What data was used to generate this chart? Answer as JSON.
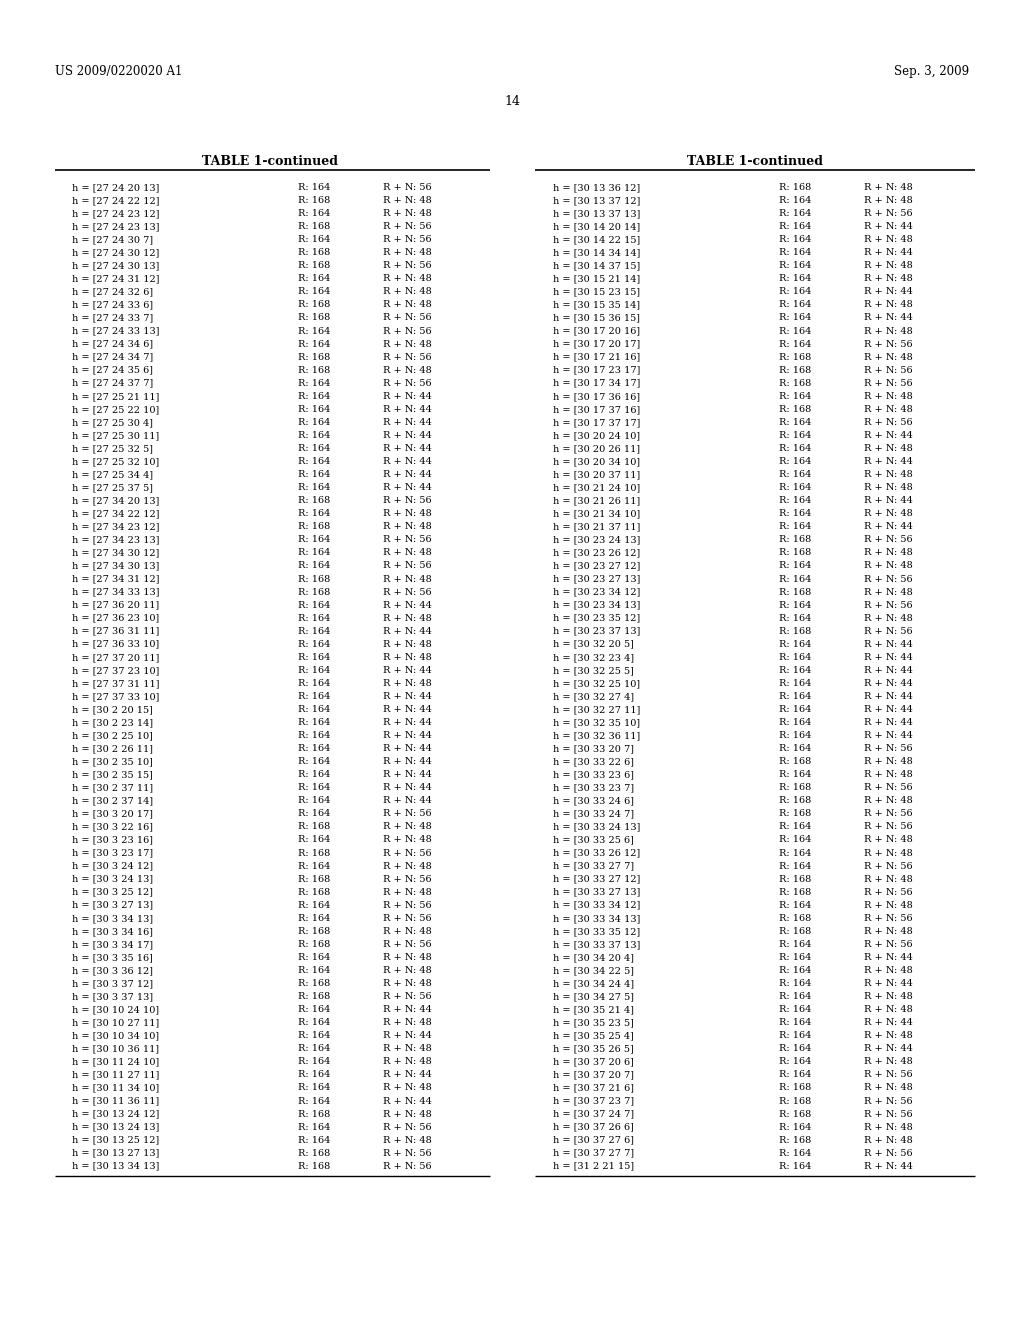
{
  "header_left": "US 2009/0220020 A1",
  "header_right": "Sep. 3, 2009",
  "page_number": "14",
  "table_title": "TABLE 1-continued",
  "background_color": "#ffffff",
  "text_color": "#000000",
  "left_col_data": [
    [
      "h = [27 24 20 13]",
      "R: 164",
      "R + N: 56"
    ],
    [
      "h = [27 24 22 12]",
      "R: 168",
      "R + N: 48"
    ],
    [
      "h = [27 24 23 12]",
      "R: 164",
      "R + N: 48"
    ],
    [
      "h = [27 24 23 13]",
      "R: 168",
      "R + N: 56"
    ],
    [
      "h = [27 24 30 7]",
      "R: 164",
      "R + N: 56"
    ],
    [
      "h = [27 24 30 12]",
      "R: 168",
      "R + N: 48"
    ],
    [
      "h = [27 24 30 13]",
      "R: 168",
      "R + N: 56"
    ],
    [
      "h = [27 24 31 12]",
      "R: 164",
      "R + N: 48"
    ],
    [
      "h = [27 24 32 6]",
      "R: 164",
      "R + N: 48"
    ],
    [
      "h = [27 24 33 6]",
      "R: 168",
      "R + N: 48"
    ],
    [
      "h = [27 24 33 7]",
      "R: 168",
      "R + N: 56"
    ],
    [
      "h = [27 24 33 13]",
      "R: 164",
      "R + N: 56"
    ],
    [
      "h = [27 24 34 6]",
      "R: 164",
      "R + N: 48"
    ],
    [
      "h = [27 24 34 7]",
      "R: 168",
      "R + N: 56"
    ],
    [
      "h = [27 24 35 6]",
      "R: 168",
      "R + N: 48"
    ],
    [
      "h = [27 24 37 7]",
      "R: 164",
      "R + N: 56"
    ],
    [
      "h = [27 25 21 11]",
      "R: 164",
      "R + N: 44"
    ],
    [
      "h = [27 25 22 10]",
      "R: 164",
      "R + N: 44"
    ],
    [
      "h = [27 25 30 4]",
      "R: 164",
      "R + N: 44"
    ],
    [
      "h = [27 25 30 11]",
      "R: 164",
      "R + N: 44"
    ],
    [
      "h = [27 25 32 5]",
      "R: 164",
      "R + N: 44"
    ],
    [
      "h = [27 25 32 10]",
      "R: 164",
      "R + N: 44"
    ],
    [
      "h = [27 25 34 4]",
      "R: 164",
      "R + N: 44"
    ],
    [
      "h = [27 25 37 5]",
      "R: 164",
      "R + N: 44"
    ],
    [
      "h = [27 34 20 13]",
      "R: 168",
      "R + N: 56"
    ],
    [
      "h = [27 34 22 12]",
      "R: 164",
      "R + N: 48"
    ],
    [
      "h = [27 34 23 12]",
      "R: 168",
      "R + N: 48"
    ],
    [
      "h = [27 34 23 13]",
      "R: 164",
      "R + N: 56"
    ],
    [
      "h = [27 34 30 12]",
      "R: 164",
      "R + N: 48"
    ],
    [
      "h = [27 34 30 13]",
      "R: 164",
      "R + N: 56"
    ],
    [
      "h = [27 34 31 12]",
      "R: 168",
      "R + N: 48"
    ],
    [
      "h = [27 34 33 13]",
      "R: 168",
      "R + N: 56"
    ],
    [
      "h = [27 36 20 11]",
      "R: 164",
      "R + N: 44"
    ],
    [
      "h = [27 36 23 10]",
      "R: 164",
      "R + N: 48"
    ],
    [
      "h = [27 36 31 11]",
      "R: 164",
      "R + N: 44"
    ],
    [
      "h = [27 36 33 10]",
      "R: 164",
      "R + N: 48"
    ],
    [
      "h = [27 37 20 11]",
      "R: 164",
      "R + N: 48"
    ],
    [
      "h = [27 37 23 10]",
      "R: 164",
      "R + N: 44"
    ],
    [
      "h = [27 37 31 11]",
      "R: 164",
      "R + N: 48"
    ],
    [
      "h = [27 37 33 10]",
      "R: 164",
      "R + N: 44"
    ],
    [
      "h = [30 2 20 15]",
      "R: 164",
      "R + N: 44"
    ],
    [
      "h = [30 2 23 14]",
      "R: 164",
      "R + N: 44"
    ],
    [
      "h = [30 2 25 10]",
      "R: 164",
      "R + N: 44"
    ],
    [
      "h = [30 2 26 11]",
      "R: 164",
      "R + N: 44"
    ],
    [
      "h = [30 2 35 10]",
      "R: 164",
      "R + N: 44"
    ],
    [
      "h = [30 2 35 15]",
      "R: 164",
      "R + N: 44"
    ],
    [
      "h = [30 2 37 11]",
      "R: 164",
      "R + N: 44"
    ],
    [
      "h = [30 2 37 14]",
      "R: 164",
      "R + N: 44"
    ],
    [
      "h = [30 3 20 17]",
      "R: 164",
      "R + N: 56"
    ],
    [
      "h = [30 3 22 16]",
      "R: 168",
      "R + N: 48"
    ],
    [
      "h = [30 3 23 16]",
      "R: 164",
      "R + N: 48"
    ],
    [
      "h = [30 3 23 17]",
      "R: 168",
      "R + N: 56"
    ],
    [
      "h = [30 3 24 12]",
      "R: 164",
      "R + N: 48"
    ],
    [
      "h = [30 3 24 13]",
      "R: 168",
      "R + N: 56"
    ],
    [
      "h = [30 3 25 12]",
      "R: 168",
      "R + N: 48"
    ],
    [
      "h = [30 3 27 13]",
      "R: 164",
      "R + N: 56"
    ],
    [
      "h = [30 3 34 13]",
      "R: 164",
      "R + N: 56"
    ],
    [
      "h = [30 3 34 16]",
      "R: 168",
      "R + N: 48"
    ],
    [
      "h = [30 3 34 17]",
      "R: 168",
      "R + N: 56"
    ],
    [
      "h = [30 3 35 16]",
      "R: 164",
      "R + N: 48"
    ],
    [
      "h = [30 3 36 12]",
      "R: 164",
      "R + N: 48"
    ],
    [
      "h = [30 3 37 12]",
      "R: 168",
      "R + N: 48"
    ],
    [
      "h = [30 3 37 13]",
      "R: 168",
      "R + N: 56"
    ],
    [
      "h = [30 10 24 10]",
      "R: 164",
      "R + N: 44"
    ],
    [
      "h = [30 10 27 11]",
      "R: 164",
      "R + N: 48"
    ],
    [
      "h = [30 10 34 10]",
      "R: 164",
      "R + N: 44"
    ],
    [
      "h = [30 10 36 11]",
      "R: 164",
      "R + N: 48"
    ],
    [
      "h = [30 11 24 10]",
      "R: 164",
      "R + N: 48"
    ],
    [
      "h = [30 11 27 11]",
      "R: 164",
      "R + N: 44"
    ],
    [
      "h = [30 11 34 10]",
      "R: 164",
      "R + N: 48"
    ],
    [
      "h = [30 11 36 11]",
      "R: 164",
      "R + N: 44"
    ],
    [
      "h = [30 13 24 12]",
      "R: 168",
      "R + N: 48"
    ],
    [
      "h = [30 13 24 13]",
      "R: 164",
      "R + N: 56"
    ],
    [
      "h = [30 13 25 12]",
      "R: 164",
      "R + N: 48"
    ],
    [
      "h = [30 13 27 13]",
      "R: 168",
      "R + N: 56"
    ],
    [
      "h = [30 13 34 13]",
      "R: 168",
      "R + N: 56"
    ]
  ],
  "right_col_data": [
    [
      "h = [30 13 36 12]",
      "R: 168",
      "R + N: 48"
    ],
    [
      "h = [30 13 37 12]",
      "R: 164",
      "R + N: 48"
    ],
    [
      "h = [30 13 37 13]",
      "R: 164",
      "R + N: 56"
    ],
    [
      "h = [30 14 20 14]",
      "R: 164",
      "R + N: 44"
    ],
    [
      "h = [30 14 22 15]",
      "R: 164",
      "R + N: 48"
    ],
    [
      "h = [30 14 34 14]",
      "R: 164",
      "R + N: 44"
    ],
    [
      "h = [30 14 37 15]",
      "R: 164",
      "R + N: 48"
    ],
    [
      "h = [30 15 21 14]",
      "R: 164",
      "R + N: 48"
    ],
    [
      "h = [30 15 23 15]",
      "R: 164",
      "R + N: 44"
    ],
    [
      "h = [30 15 35 14]",
      "R: 164",
      "R + N: 48"
    ],
    [
      "h = [30 15 36 15]",
      "R: 164",
      "R + N: 44"
    ],
    [
      "h = [30 17 20 16]",
      "R: 164",
      "R + N: 48"
    ],
    [
      "h = [30 17 20 17]",
      "R: 164",
      "R + N: 56"
    ],
    [
      "h = [30 17 21 16]",
      "R: 168",
      "R + N: 48"
    ],
    [
      "h = [30 17 23 17]",
      "R: 168",
      "R + N: 56"
    ],
    [
      "h = [30 17 34 17]",
      "R: 168",
      "R + N: 56"
    ],
    [
      "h = [30 17 36 16]",
      "R: 164",
      "R + N: 48"
    ],
    [
      "h = [30 17 37 16]",
      "R: 168",
      "R + N: 48"
    ],
    [
      "h = [30 17 37 17]",
      "R: 164",
      "R + N: 56"
    ],
    [
      "h = [30 20 24 10]",
      "R: 164",
      "R + N: 44"
    ],
    [
      "h = [30 20 26 11]",
      "R: 164",
      "R + N: 48"
    ],
    [
      "h = [30 20 34 10]",
      "R: 164",
      "R + N: 44"
    ],
    [
      "h = [30 20 37 11]",
      "R: 164",
      "R + N: 48"
    ],
    [
      "h = [30 21 24 10]",
      "R: 164",
      "R + N: 48"
    ],
    [
      "h = [30 21 26 11]",
      "R: 164",
      "R + N: 44"
    ],
    [
      "h = [30 21 34 10]",
      "R: 164",
      "R + N: 48"
    ],
    [
      "h = [30 21 37 11]",
      "R: 164",
      "R + N: 44"
    ],
    [
      "h = [30 23 24 13]",
      "R: 168",
      "R + N: 56"
    ],
    [
      "h = [30 23 26 12]",
      "R: 168",
      "R + N: 48"
    ],
    [
      "h = [30 23 27 12]",
      "R: 164",
      "R + N: 48"
    ],
    [
      "h = [30 23 27 13]",
      "R: 164",
      "R + N: 56"
    ],
    [
      "h = [30 23 34 12]",
      "R: 168",
      "R + N: 48"
    ],
    [
      "h = [30 23 34 13]",
      "R: 164",
      "R + N: 56"
    ],
    [
      "h = [30 23 35 12]",
      "R: 164",
      "R + N: 48"
    ],
    [
      "h = [30 23 37 13]",
      "R: 168",
      "R + N: 56"
    ],
    [
      "h = [30 32 20 5]",
      "R: 164",
      "R + N: 44"
    ],
    [
      "h = [30 32 23 4]",
      "R: 164",
      "R + N: 44"
    ],
    [
      "h = [30 32 25 5]",
      "R: 164",
      "R + N: 44"
    ],
    [
      "h = [30 32 25 10]",
      "R: 164",
      "R + N: 44"
    ],
    [
      "h = [30 32 27 4]",
      "R: 164",
      "R + N: 44"
    ],
    [
      "h = [30 32 27 11]",
      "R: 164",
      "R + N: 44"
    ],
    [
      "h = [30 32 35 10]",
      "R: 164",
      "R + N: 44"
    ],
    [
      "h = [30 32 36 11]",
      "R: 164",
      "R + N: 44"
    ],
    [
      "h = [30 33 20 7]",
      "R: 164",
      "R + N: 56"
    ],
    [
      "h = [30 33 22 6]",
      "R: 168",
      "R + N: 48"
    ],
    [
      "h = [30 33 23 6]",
      "R: 164",
      "R + N: 48"
    ],
    [
      "h = [30 33 23 7]",
      "R: 168",
      "R + N: 56"
    ],
    [
      "h = [30 33 24 6]",
      "R: 168",
      "R + N: 48"
    ],
    [
      "h = [30 33 24 7]",
      "R: 168",
      "R + N: 56"
    ],
    [
      "h = [30 33 24 13]",
      "R: 164",
      "R + N: 56"
    ],
    [
      "h = [30 33 25 6]",
      "R: 164",
      "R + N: 48"
    ],
    [
      "h = [30 33 26 12]",
      "R: 164",
      "R + N: 48"
    ],
    [
      "h = [30 33 27 7]",
      "R: 164",
      "R + N: 56"
    ],
    [
      "h = [30 33 27 12]",
      "R: 168",
      "R + N: 48"
    ],
    [
      "h = [30 33 27 13]",
      "R: 168",
      "R + N: 56"
    ],
    [
      "h = [30 33 34 12]",
      "R: 164",
      "R + N: 48"
    ],
    [
      "h = [30 33 34 13]",
      "R: 168",
      "R + N: 56"
    ],
    [
      "h = [30 33 35 12]",
      "R: 168",
      "R + N: 48"
    ],
    [
      "h = [30 33 37 13]",
      "R: 164",
      "R + N: 56"
    ],
    [
      "h = [30 34 20 4]",
      "R: 164",
      "R + N: 44"
    ],
    [
      "h = [30 34 22 5]",
      "R: 164",
      "R + N: 48"
    ],
    [
      "h = [30 34 24 4]",
      "R: 164",
      "R + N: 44"
    ],
    [
      "h = [30 34 27 5]",
      "R: 164",
      "R + N: 48"
    ],
    [
      "h = [30 35 21 4]",
      "R: 164",
      "R + N: 48"
    ],
    [
      "h = [30 35 23 5]",
      "R: 164",
      "R + N: 44"
    ],
    [
      "h = [30 35 25 4]",
      "R: 164",
      "R + N: 48"
    ],
    [
      "h = [30 35 26 5]",
      "R: 164",
      "R + N: 44"
    ],
    [
      "h = [30 37 20 6]",
      "R: 164",
      "R + N: 48"
    ],
    [
      "h = [30 37 20 7]",
      "R: 164",
      "R + N: 56"
    ],
    [
      "h = [30 37 21 6]",
      "R: 168",
      "R + N: 48"
    ],
    [
      "h = [30 37 23 7]",
      "R: 168",
      "R + N: 56"
    ],
    [
      "h = [30 37 24 7]",
      "R: 168",
      "R + N: 56"
    ],
    [
      "h = [30 37 26 6]",
      "R: 164",
      "R + N: 48"
    ],
    [
      "h = [30 37 27 6]",
      "R: 168",
      "R + N: 48"
    ],
    [
      "h = [30 37 27 7]",
      "R: 164",
      "R + N: 56"
    ],
    [
      "h = [31 2 21 15]",
      "R: 164",
      "R + N: 44"
    ]
  ]
}
